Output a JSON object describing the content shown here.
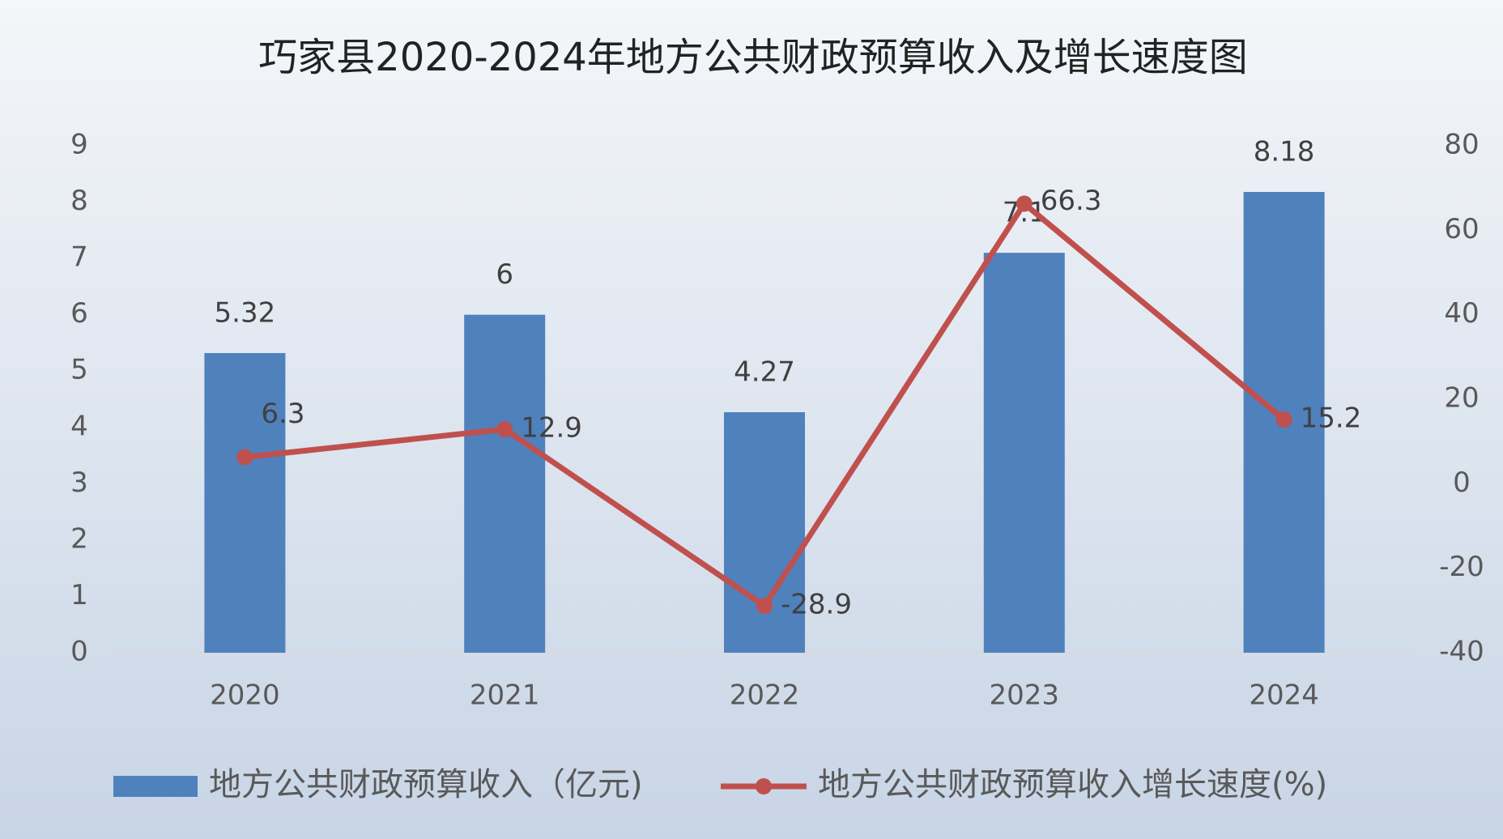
{
  "chart_data": {
    "type": "bar-line",
    "title": "巧家县2020-2024年地方公共财政预算收入及增长速度图",
    "categories": [
      "2020",
      "2021",
      "2022",
      "2023",
      "2024"
    ],
    "series": [
      {
        "name": "地方公共财政预算收入（亿元)",
        "type": "bar",
        "color": "#4f81bd",
        "values": [
          5.32,
          6,
          4.27,
          7.1,
          8.18
        ]
      },
      {
        "name": "地方公共财政预算收入增长速度(%)",
        "type": "line",
        "axis": "y2",
        "color": "#c0504d",
        "values": [
          6.3,
          12.9,
          -28.9,
          66.3,
          15.2
        ]
      }
    ],
    "ylim": [
      0,
      9
    ],
    "yticks": [
      0,
      1,
      2,
      3,
      4,
      5,
      6,
      7,
      8,
      9
    ],
    "y2lim": [
      -40,
      80
    ],
    "y2ticks": [
      -40,
      -20,
      0,
      20,
      40,
      60,
      80
    ],
    "legend": "bottom",
    "grid": false
  }
}
